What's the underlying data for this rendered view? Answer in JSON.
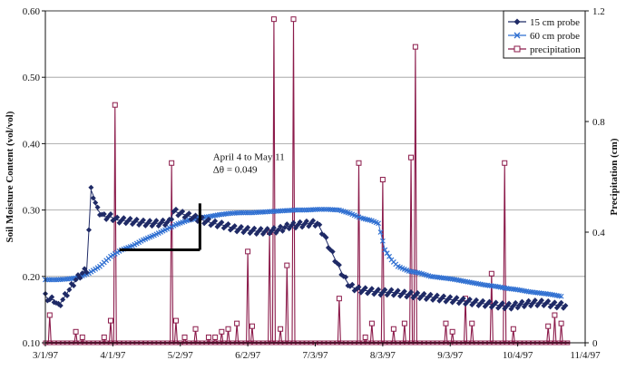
{
  "chart_data": {
    "type": "line",
    "title": "",
    "ylabel_left": "Soil Moisture Content (vol/vol)",
    "ylabel_right": "Precipitation (cm)",
    "ylim_left": [
      0.1,
      0.6
    ],
    "yticks_left": [
      "0.10",
      "0.20",
      "0.30",
      "0.40",
      "0.50",
      "0.60"
    ],
    "ylim_right": [
      0,
      1.2
    ],
    "yticks_right": [
      "0",
      "0.4",
      "0.8",
      "1.2"
    ],
    "x_start": "3/1/97",
    "x_end": "11/4/97",
    "xticks": [
      "3/1/97",
      "4/1/97",
      "5/2/97",
      "6/2/97",
      "7/3/97",
      "8/3/97",
      "9/3/97",
      "10/4/97",
      "11/4/97"
    ],
    "grid": "horizontal",
    "legend_position": "top-right",
    "series": [
      {
        "name": "15 cm probe",
        "color": "#1f2a66",
        "marker": "diamond",
        "axis": "left",
        "points": [
          [
            "3/1/97",
            0.17
          ],
          [
            "3/3/97",
            0.165
          ],
          [
            "3/5/97",
            0.165
          ],
          [
            "3/7/97",
            0.155
          ],
          [
            "3/9/97",
            0.165
          ],
          [
            "3/12/97",
            0.18
          ],
          [
            "3/15/97",
            0.195
          ],
          [
            "3/18/97",
            0.205
          ],
          [
            "3/20/97",
            0.21
          ],
          [
            "3/22/97",
            0.33
          ],
          [
            "3/23/97",
            0.322
          ],
          [
            "3/25/97",
            0.3
          ],
          [
            "3/28/97",
            0.29
          ],
          [
            "3/31/97",
            0.29
          ],
          [
            "4/3/97",
            0.285
          ],
          [
            "4/7/97",
            0.284
          ],
          [
            "4/12/97",
            0.282
          ],
          [
            "4/17/97",
            0.28
          ],
          [
            "4/22/97",
            0.28
          ],
          [
            "4/27/97",
            0.282
          ],
          [
            "4/29/97",
            0.298
          ],
          [
            "5/2/97",
            0.295
          ],
          [
            "5/7/97",
            0.29
          ],
          [
            "5/12/97",
            0.285
          ],
          [
            "5/17/97",
            0.28
          ],
          [
            "5/22/97",
            0.277
          ],
          [
            "5/27/97",
            0.272
          ],
          [
            "6/1/97",
            0.27
          ],
          [
            "6/6/97",
            0.268
          ],
          [
            "6/11/97",
            0.268
          ],
          [
            "6/16/97",
            0.27
          ],
          [
            "6/21/97",
            0.276
          ],
          [
            "6/26/97",
            0.278
          ],
          [
            "7/1/97",
            0.28
          ],
          [
            "7/4/97",
            0.28
          ],
          [
            "7/7/97",
            0.262
          ],
          [
            "7/10/97",
            0.24
          ],
          [
            "7/13/97",
            0.22
          ],
          [
            "7/16/97",
            0.2
          ],
          [
            "7/19/97",
            0.185
          ],
          [
            "7/23/97",
            0.18
          ],
          [
            "7/28/97",
            0.178
          ],
          [
            "8/2/97",
            0.176
          ],
          [
            "8/7/97",
            0.176
          ],
          [
            "8/12/97",
            0.174
          ],
          [
            "8/17/97",
            0.172
          ],
          [
            "8/22/97",
            0.17
          ],
          [
            "8/27/97",
            0.168
          ],
          [
            "9/1/97",
            0.166
          ],
          [
            "9/6/97",
            0.164
          ],
          [
            "9/11/97",
            0.162
          ],
          [
            "9/16/97",
            0.16
          ],
          [
            "9/21/97",
            0.158
          ],
          [
            "9/26/97",
            0.156
          ],
          [
            "10/1/97",
            0.155
          ],
          [
            "10/6/97",
            0.158
          ],
          [
            "10/11/97",
            0.16
          ],
          [
            "10/16/97",
            0.16
          ],
          [
            "10/21/97",
            0.157
          ],
          [
            "10/26/97",
            0.156
          ]
        ]
      },
      {
        "name": "60 cm probe",
        "color": "#2f6fd1",
        "marker": "x",
        "axis": "left",
        "points": [
          [
            "3/1/97",
            0.195
          ],
          [
            "3/6/97",
            0.195
          ],
          [
            "3/11/97",
            0.196
          ],
          [
            "3/16/97",
            0.198
          ],
          [
            "3/21/97",
            0.205
          ],
          [
            "3/26/97",
            0.215
          ],
          [
            "3/31/97",
            0.23
          ],
          [
            "4/5/97",
            0.24
          ],
          [
            "4/10/97",
            0.246
          ],
          [
            "4/15/97",
            0.255
          ],
          [
            "4/20/97",
            0.262
          ],
          [
            "4/25/97",
            0.27
          ],
          [
            "4/30/97",
            0.278
          ],
          [
            "5/5/97",
            0.284
          ],
          [
            "5/10/97",
            0.288
          ],
          [
            "5/15/97",
            0.29
          ],
          [
            "5/20/97",
            0.293
          ],
          [
            "5/25/97",
            0.295
          ],
          [
            "5/30/97",
            0.296
          ],
          [
            "6/4/97",
            0.296
          ],
          [
            "6/9/97",
            0.297
          ],
          [
            "6/14/97",
            0.298
          ],
          [
            "6/19/97",
            0.299
          ],
          [
            "6/24/97",
            0.3
          ],
          [
            "6/29/97",
            0.3
          ],
          [
            "7/4/97",
            0.301
          ],
          [
            "7/9/97",
            0.301
          ],
          [
            "7/14/97",
            0.3
          ],
          [
            "7/19/97",
            0.295
          ],
          [
            "7/24/97",
            0.288
          ],
          [
            "7/29/97",
            0.284
          ],
          [
            "8/1/97",
            0.28
          ],
          [
            "8/4/97",
            0.24
          ],
          [
            "8/7/97",
            0.225
          ],
          [
            "8/10/97",
            0.215
          ],
          [
            "8/15/97",
            0.208
          ],
          [
            "8/20/97",
            0.205
          ],
          [
            "8/25/97",
            0.2
          ],
          [
            "8/30/97",
            0.198
          ],
          [
            "9/4/97",
            0.196
          ],
          [
            "9/9/97",
            0.193
          ],
          [
            "9/14/97",
            0.19
          ],
          [
            "9/19/97",
            0.187
          ],
          [
            "9/24/97",
            0.185
          ],
          [
            "9/29/97",
            0.182
          ],
          [
            "10/4/97",
            0.18
          ],
          [
            "10/9/97",
            0.177
          ],
          [
            "10/14/97",
            0.175
          ],
          [
            "10/19/97",
            0.173
          ],
          [
            "10/24/97",
            0.17
          ]
        ]
      },
      {
        "name": "precipitation",
        "color": "#8b1a4a",
        "marker": "square",
        "axis": "right",
        "spikes": [
          [
            "3/3/97",
            0.1
          ],
          [
            "3/15/97",
            0.04
          ],
          [
            "3/18/97",
            0.02
          ],
          [
            "3/28/97",
            0.02
          ],
          [
            "3/31/97",
            0.08
          ],
          [
            "4/2/97",
            0.86
          ],
          [
            "4/28/97",
            0.65
          ],
          [
            "4/30/97",
            0.08
          ],
          [
            "5/4/97",
            0.02
          ],
          [
            "5/9/97",
            0.05
          ],
          [
            "5/15/97",
            0.02
          ],
          [
            "5/18/97",
            0.02
          ],
          [
            "5/21/97",
            0.04
          ],
          [
            "5/24/97",
            0.05
          ],
          [
            "5/28/97",
            0.07
          ],
          [
            "6/2/97",
            0.33
          ],
          [
            "6/4/97",
            0.06
          ],
          [
            "6/12/97",
            0.4
          ],
          [
            "6/14/97",
            1.17
          ],
          [
            "6/17/97",
            0.05
          ],
          [
            "6/20/97",
            0.28
          ],
          [
            "6/23/97",
            1.17
          ],
          [
            "7/14/97",
            0.16
          ],
          [
            "7/23/97",
            0.65
          ],
          [
            "7/26/97",
            0.02
          ],
          [
            "7/29/97",
            0.07
          ],
          [
            "8/3/97",
            0.59
          ],
          [
            "8/8/97",
            0.05
          ],
          [
            "8/13/97",
            0.07
          ],
          [
            "8/16/97",
            0.67
          ],
          [
            "8/18/97",
            1.07
          ],
          [
            "9/1/97",
            0.07
          ],
          [
            "9/4/97",
            0.04
          ],
          [
            "9/10/97",
            0.16
          ],
          [
            "9/13/97",
            0.07
          ],
          [
            "9/22/97",
            0.25
          ],
          [
            "9/28/97",
            0.65
          ],
          [
            "10/2/97",
            0.05
          ],
          [
            "10/18/97",
            0.06
          ],
          [
            "10/21/97",
            0.1
          ],
          [
            "10/24/97",
            0.07
          ]
        ]
      }
    ],
    "annotations": [
      {
        "lines": [
          "April 4 to May 11",
          "Δθ = 0.049"
        ],
        "segment_from": [
          "4/4/97",
          0.24
        ],
        "segment_to": [
          "5/11/97",
          0.24
        ],
        "tick_from": 0.24,
        "tick_to": 0.31,
        "tick_date": "5/11/97"
      }
    ]
  }
}
